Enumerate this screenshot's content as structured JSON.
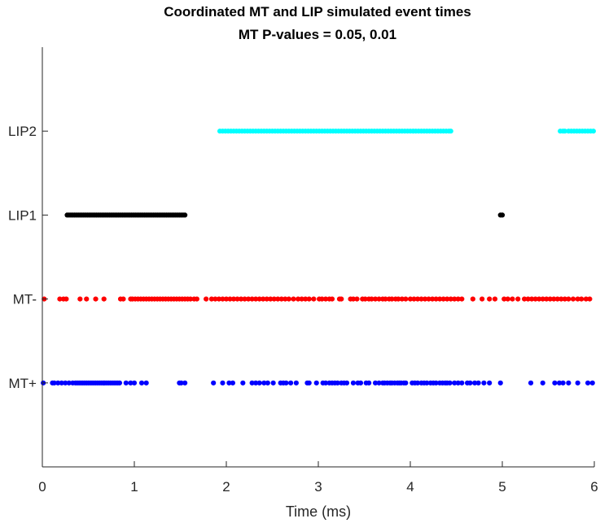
{
  "chart_data": {
    "type": "scatter",
    "title": "Coordinated MT and LIP simulated event times",
    "subtitle": "MT P-values = 0.05, 0.01",
    "xlabel": "Time (ms)",
    "ylabel": "",
    "xlim": [
      0,
      6
    ],
    "ylim": [
      0,
      5
    ],
    "xticks": [
      "0",
      "1",
      "2",
      "3",
      "4",
      "5",
      "6"
    ],
    "yticks": [
      {
        "value": 1,
        "label": "MT+"
      },
      {
        "value": 2,
        "label": "MT-"
      },
      {
        "value": 3,
        "label": "LIP1"
      },
      {
        "value": 4,
        "label": "LIP2"
      }
    ],
    "grid": false,
    "series": [
      {
        "color": "#0000ff",
        "y": 1,
        "marker_size": 5,
        "x": [
          0.01,
          0.11,
          0.13,
          0.17,
          0.21,
          0.25,
          0.29,
          0.33,
          0.36,
          0.38,
          0.4,
          0.42,
          0.44,
          0.46,
          0.48,
          0.5,
          0.52,
          0.54,
          0.56,
          0.58,
          0.6,
          0.62,
          0.64,
          0.66,
          0.68,
          0.7,
          0.72,
          0.74,
          0.76,
          0.78,
          0.8,
          0.82,
          0.84,
          0.91,
          0.96,
          1.0,
          1.08,
          1.13,
          1.49,
          1.51,
          1.55,
          1.86,
          1.96,
          2.03,
          2.07,
          2.18,
          2.28,
          2.32,
          2.36,
          2.41,
          2.45,
          2.51,
          2.59,
          2.62,
          2.65,
          2.7,
          2.76,
          2.88,
          2.9,
          2.98,
          3.05,
          3.08,
          3.12,
          3.15,
          3.18,
          3.21,
          3.25,
          3.28,
          3.31,
          3.38,
          3.43,
          3.46,
          3.52,
          3.55,
          3.62,
          3.66,
          3.7,
          3.72,
          3.75,
          3.78,
          3.8,
          3.83,
          3.86,
          3.88,
          3.9,
          3.93,
          3.95,
          4.02,
          4.05,
          4.08,
          4.12,
          4.15,
          4.18,
          4.22,
          4.25,
          4.28,
          4.32,
          4.35,
          4.38,
          4.4,
          4.43,
          4.48,
          4.52,
          4.56,
          4.62,
          4.65,
          4.7,
          4.74,
          4.8,
          4.86,
          4.98,
          5.31,
          5.44,
          5.57,
          5.62,
          5.66,
          5.72,
          5.82,
          5.93,
          5.98
        ]
      },
      {
        "color": "#ff0000",
        "y": 2,
        "marker_size": 5,
        "x": [
          0.02,
          0.19,
          0.23,
          0.26,
          0.41,
          0.48,
          0.58,
          0.67,
          0.85,
          0.88,
          0.96,
          0.98,
          1.01,
          1.04,
          1.07,
          1.1,
          1.13,
          1.16,
          1.19,
          1.22,
          1.25,
          1.28,
          1.31,
          1.34,
          1.37,
          1.4,
          1.43,
          1.46,
          1.49,
          1.52,
          1.55,
          1.58,
          1.61,
          1.65,
          1.68,
          1.78,
          1.84,
          1.88,
          1.92,
          1.96,
          2.0,
          2.04,
          2.08,
          2.12,
          2.16,
          2.2,
          2.24,
          2.28,
          2.32,
          2.36,
          2.4,
          2.44,
          2.48,
          2.52,
          2.56,
          2.6,
          2.64,
          2.68,
          2.73,
          2.78,
          2.82,
          2.86,
          2.9,
          2.95,
          3.01,
          3.04,
          3.08,
          3.12,
          3.15,
          3.23,
          3.25,
          3.35,
          3.38,
          3.42,
          3.48,
          3.51,
          3.55,
          3.58,
          3.62,
          3.66,
          3.7,
          3.73,
          3.77,
          3.8,
          3.84,
          3.87,
          3.91,
          3.95,
          4.0,
          4.04,
          4.08,
          4.12,
          4.16,
          4.2,
          4.24,
          4.28,
          4.32,
          4.36,
          4.4,
          4.44,
          4.48,
          4.52,
          4.56,
          4.68,
          4.78,
          4.86,
          4.92,
          5.02,
          5.06,
          5.11,
          5.17,
          5.24,
          5.28,
          5.32,
          5.36,
          5.4,
          5.44,
          5.48,
          5.52,
          5.56,
          5.6,
          5.64,
          5.68,
          5.72,
          5.77,
          5.82,
          5.86,
          5.91,
          5.95
        ]
      },
      {
        "color": "#000000",
        "y": 3,
        "marker_size": 5,
        "x": [
          0.27,
          0.29,
          0.31,
          0.33,
          0.35,
          0.37,
          0.39,
          0.41,
          0.43,
          0.45,
          0.47,
          0.49,
          0.51,
          0.53,
          0.55,
          0.57,
          0.59,
          0.61,
          0.63,
          0.65,
          0.67,
          0.69,
          0.71,
          0.73,
          0.75,
          0.77,
          0.79,
          0.81,
          0.83,
          0.85,
          0.87,
          0.89,
          0.91,
          0.93,
          0.95,
          0.97,
          0.99,
          1.01,
          1.03,
          1.05,
          1.07,
          1.09,
          1.11,
          1.13,
          1.15,
          1.17,
          1.19,
          1.21,
          1.23,
          1.25,
          1.27,
          1.29,
          1.31,
          1.33,
          1.35,
          1.37,
          1.39,
          1.41,
          1.43,
          1.45,
          1.47,
          1.49,
          1.51,
          1.53,
          1.55,
          4.98,
          5.0
        ]
      },
      {
        "color": "#00ffff",
        "y": 4,
        "marker_size": 5,
        "x": [
          1.93,
          1.96,
          1.99,
          2.02,
          2.05,
          2.08,
          2.11,
          2.14,
          2.17,
          2.2,
          2.23,
          2.26,
          2.29,
          2.32,
          2.35,
          2.38,
          2.41,
          2.44,
          2.47,
          2.5,
          2.53,
          2.56,
          2.59,
          2.62,
          2.65,
          2.68,
          2.71,
          2.74,
          2.77,
          2.8,
          2.83,
          2.86,
          2.89,
          2.92,
          2.95,
          2.98,
          3.01,
          3.04,
          3.07,
          3.1,
          3.13,
          3.16,
          3.19,
          3.22,
          3.25,
          3.28,
          3.31,
          3.34,
          3.37,
          3.4,
          3.43,
          3.46,
          3.49,
          3.52,
          3.55,
          3.58,
          3.61,
          3.64,
          3.67,
          3.7,
          3.73,
          3.76,
          3.79,
          3.82,
          3.85,
          3.88,
          3.91,
          3.94,
          3.97,
          4.0,
          4.03,
          4.06,
          4.09,
          4.12,
          4.15,
          4.18,
          4.21,
          4.24,
          4.27,
          4.3,
          4.33,
          4.36,
          4.39,
          4.42,
          4.44,
          5.63,
          5.66,
          5.68,
          5.72,
          5.75,
          5.78,
          5.81,
          5.84,
          5.87,
          5.9,
          5.93,
          5.96,
          5.99
        ]
      }
    ]
  }
}
